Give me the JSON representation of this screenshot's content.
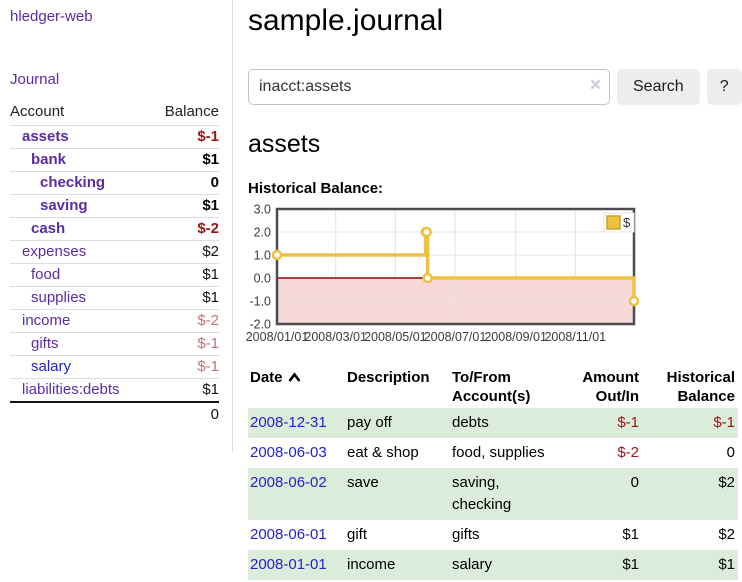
{
  "brand": {
    "label": "hledger-web"
  },
  "nav": {
    "journal": "Journal"
  },
  "sidebar": {
    "headers": {
      "account": "Account",
      "balance": "Balance"
    },
    "accounts": [
      {
        "name": "assets",
        "balance": "$-1",
        "level": 1,
        "bold": true,
        "balance_style": "neg-strong"
      },
      {
        "name": "bank",
        "balance": "$1",
        "level": 2,
        "bold": true,
        "balance_style": "pos-strong"
      },
      {
        "name": "checking",
        "balance": "0",
        "level": 3,
        "bold": true,
        "balance_style": "pos-strong"
      },
      {
        "name": "saving",
        "balance": "$1",
        "level": 3,
        "bold": true,
        "balance_style": "pos-strong"
      },
      {
        "name": "cash",
        "balance": "$-2",
        "level": 2,
        "bold": true,
        "balance_style": "neg-strong"
      },
      {
        "name": "expenses",
        "balance": "$2",
        "level": 1,
        "bold": false,
        "balance_style": "pos"
      },
      {
        "name": "food",
        "balance": "$1",
        "level": 2,
        "bold": false,
        "balance_style": "pos"
      },
      {
        "name": "supplies",
        "balance": "$1",
        "level": 2,
        "bold": false,
        "balance_style": "pos"
      },
      {
        "name": "income",
        "balance": "$-2",
        "level": 1,
        "bold": false,
        "balance_style": "neg-muted"
      },
      {
        "name": "gifts",
        "balance": "$-1",
        "level": 2,
        "bold": false,
        "balance_style": "neg-muted"
      },
      {
        "name": "salary",
        "balance": "$-1",
        "level": 2,
        "bold": false,
        "balance_style": "neg-muted",
        "name_color": "blue"
      },
      {
        "name": "liabilities:debts",
        "balance": "$1",
        "level": 1,
        "bold": false,
        "balance_style": "pos"
      }
    ],
    "total": {
      "balance": "0"
    }
  },
  "header": {
    "title": "sample.journal"
  },
  "search": {
    "value": "inacct:assets",
    "clear_icon": "×",
    "button_label": "Search",
    "help_label": "?"
  },
  "account_page": {
    "heading": "assets",
    "chart_title": "Historical Balance:"
  },
  "chart_data": {
    "type": "line",
    "step": true,
    "title": "Historical Balance",
    "x_range": [
      "2008-01-01",
      "2008-12-31"
    ],
    "ylim": [
      -2,
      3
    ],
    "yticks": [
      {
        "label": "3.0",
        "value": 3
      },
      {
        "label": "2.0",
        "value": 2
      },
      {
        "label": "1.0",
        "value": 1
      },
      {
        "label": "0.0",
        "value": 0
      },
      {
        "label": "-1.0",
        "value": -1
      },
      {
        "label": "-2.0",
        "value": -2
      }
    ],
    "xticks": [
      {
        "label": "2008/01/01",
        "date": "2008-01-01"
      },
      {
        "label": "2008/03/01",
        "date": "2008-03-01"
      },
      {
        "label": "2008/05/01",
        "date": "2008-05-01"
      },
      {
        "label": "2008/07/01",
        "date": "2008-07-01"
      },
      {
        "label": "2008/09/01",
        "date": "2008-09-01"
      },
      {
        "label": "2008/11/01",
        "date": "2008-11-01"
      }
    ],
    "series": [
      {
        "name": "$",
        "color": "#edc240",
        "points": [
          {
            "date": "2008-01-01",
            "value": 1
          },
          {
            "date": "2008-06-01",
            "value": 2
          },
          {
            "date": "2008-06-02",
            "value": 2
          },
          {
            "date": "2008-06-03",
            "value": 0
          },
          {
            "date": "2008-12-31",
            "value": -1
          }
        ]
      }
    ],
    "legend_position": "top-right",
    "grid": true,
    "grid_color": "#e3e3e3",
    "border_color": "#4d4d4d",
    "tick_label_color": "#3c3c3c",
    "negative_region_color": "#f8d9d9",
    "zero_line_color": "#990000"
  },
  "register": {
    "headers": {
      "date": "Date",
      "description": "Description",
      "accounts": "To/From Account(s)",
      "amount": "Amount Out/In",
      "balance": "Historical Balance"
    },
    "rows": [
      {
        "date": "2008-12-31",
        "description": "pay off",
        "accounts": "debts",
        "amount": "$-1",
        "amount_neg": true,
        "balance": "$-1",
        "balance_neg": true,
        "shaded": true
      },
      {
        "date": "2008-06-03",
        "description": "eat & shop",
        "accounts": "food, supplies",
        "amount": "$-2",
        "amount_neg": true,
        "balance": "0",
        "balance_neg": false,
        "shaded": false
      },
      {
        "date": "2008-06-02",
        "description": "save",
        "accounts": "saving, checking",
        "amount": "0",
        "amount_neg": false,
        "balance": "$2",
        "balance_neg": false,
        "shaded": true
      },
      {
        "date": "2008-06-01",
        "description": "gift",
        "accounts": "gifts",
        "amount": "$1",
        "amount_neg": false,
        "balance": "$2",
        "balance_neg": false,
        "shaded": false
      },
      {
        "date": "2008-01-01",
        "description": "income",
        "accounts": "salary",
        "amount": "$1",
        "amount_neg": false,
        "balance": "$1",
        "balance_neg": false,
        "shaded": true
      }
    ]
  }
}
